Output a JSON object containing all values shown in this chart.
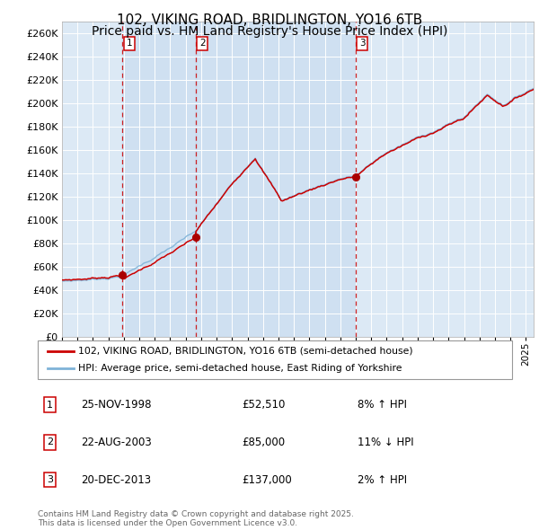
{
  "title": "102, VIKING ROAD, BRIDLINGTON, YO16 6TB",
  "subtitle": "Price paid vs. HM Land Registry's House Price Index (HPI)",
  "legend_line1": "102, VIKING ROAD, BRIDLINGTON, YO16 6TB (semi-detached house)",
  "legend_line2": "HPI: Average price, semi-detached house, East Riding of Yorkshire",
  "footer": "Contains HM Land Registry data © Crown copyright and database right 2025.\nThis data is licensed under the Open Government Licence v3.0.",
  "sale_events": [
    {
      "num": 1,
      "date": "25-NOV-1998",
      "price": 52510,
      "pct": "8%",
      "dir": "↑"
    },
    {
      "num": 2,
      "date": "22-AUG-2003",
      "price": 85000,
      "pct": "11%",
      "dir": "↓"
    },
    {
      "num": 3,
      "date": "20-DEC-2013",
      "price": 137000,
      "pct": "2%",
      "dir": "↑"
    }
  ],
  "sale_dates_decimal": [
    1998.92,
    2003.64,
    2013.97
  ],
  "sale_prices": [
    52510,
    85000,
    137000
  ],
  "vline_dates": [
    1998.92,
    2003.64,
    2013.97
  ],
  "ymin": 0,
  "ymax": 270000,
  "yticks": [
    0,
    20000,
    40000,
    60000,
    80000,
    100000,
    120000,
    140000,
    160000,
    180000,
    200000,
    220000,
    240000,
    260000
  ],
  "xmin": 1995.0,
  "xmax": 2025.5,
  "plot_bg_color": "#dce9f5",
  "grid_color": "#ffffff",
  "line_color_red": "#cc0000",
  "line_color_blue": "#7fb3d8",
  "marker_color": "#aa0000",
  "vline_color": "#cc0000",
  "shade_color": "#c5d9ee",
  "title_fontsize": 11,
  "subtitle_fontsize": 10
}
